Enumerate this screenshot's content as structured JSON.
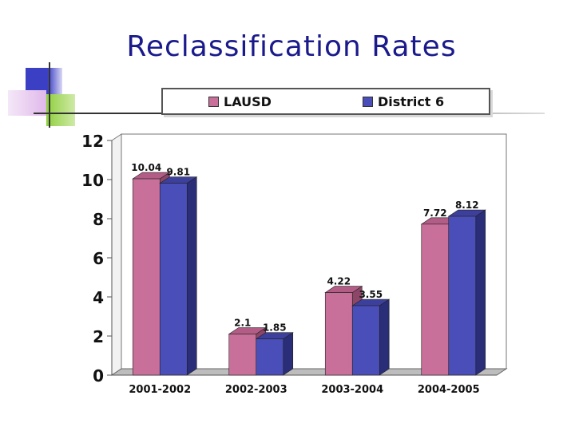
{
  "slide": {
    "title": "Reclassification Rates"
  },
  "colors": {
    "lausd": "#c8709a",
    "district6": "#4a4eb8",
    "title": "#1a1a8c",
    "deco_blue": "#3b3fc4",
    "deco_green": "#8fcf3f",
    "deco_pink": "#e0b8ea"
  },
  "chart_data": {
    "type": "bar",
    "categories": [
      "2001-2002",
      "2002-2003",
      "2003-2004",
      "2004-2005"
    ],
    "series": [
      {
        "name": "LAUSD",
        "values": [
          10.04,
          2.1,
          4.22,
          7.72
        ],
        "labels": [
          "10.04",
          "2.1",
          "4.22",
          "7.72"
        ]
      },
      {
        "name": "District 6",
        "values": [
          9.81,
          1.85,
          3.55,
          8.12
        ],
        "labels": [
          "9.81",
          "1.85",
          "3.55",
          "8.12"
        ]
      }
    ],
    "yticks": [
      "0",
      "2",
      "4",
      "6",
      "8",
      "10",
      "12"
    ],
    "ylim": [
      0,
      12
    ],
    "legend_position": "top",
    "grid": false,
    "style": "3d"
  }
}
